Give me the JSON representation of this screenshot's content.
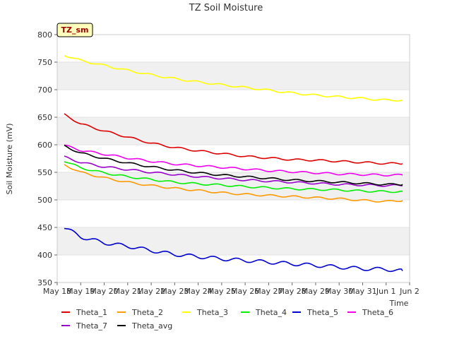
{
  "chart_data": {
    "type": "line",
    "title": "TZ Soil Moisture",
    "xlabel": "Time",
    "ylabel": "Soil Moisture (mV)",
    "ylim": [
      350,
      800
    ],
    "xlim": [
      0,
      15
    ],
    "grid": true,
    "station_label": "TZ_sm",
    "yticks": [
      350,
      400,
      450,
      500,
      550,
      600,
      650,
      700,
      750,
      800
    ],
    "xticks": [
      {
        "pos": 0,
        "label": "May 18"
      },
      {
        "pos": 1,
        "label": "May 19"
      },
      {
        "pos": 2,
        "label": "May 20"
      },
      {
        "pos": 3,
        "label": "May 21"
      },
      {
        "pos": 4,
        "label": "May 22"
      },
      {
        "pos": 5,
        "label": "May 23"
      },
      {
        "pos": 6,
        "label": "May 24"
      },
      {
        "pos": 7,
        "label": "May 25"
      },
      {
        "pos": 8,
        "label": "May 26"
      },
      {
        "pos": 9,
        "label": "May 27"
      },
      {
        "pos": 10,
        "label": "May 28"
      },
      {
        "pos": 11,
        "label": "May 29"
      },
      {
        "pos": 12,
        "label": "May 30"
      },
      {
        "pos": 13,
        "label": "May 31"
      },
      {
        "pos": 14,
        "label": "Jun 1"
      },
      {
        "pos": 15,
        "label": "Jun 2"
      }
    ],
    "x": [
      0.3,
      1.0,
      2.0,
      3.0,
      4.0,
      5.0,
      6.0,
      7.0,
      8.0,
      9.0,
      10.0,
      11.0,
      12.0,
      13.0,
      14.0,
      14.7
    ],
    "series": [
      {
        "name": "Theta_1",
        "color": "#dd0000",
        "values": [
          655,
          638,
          625,
          614,
          603,
          595,
          589,
          584,
          579,
          576,
          573,
          572,
          570,
          568,
          566,
          566
        ]
      },
      {
        "name": "Theta_2",
        "color": "#ff9900",
        "values": [
          564,
          550,
          540,
          532,
          526,
          521,
          517,
          513,
          510,
          508,
          506,
          504,
          502,
          499,
          497,
          499
        ]
      },
      {
        "name": "Theta_3",
        "color": "#ffff00",
        "values": [
          763,
          753,
          744,
          735,
          727,
          720,
          714,
          709,
          704,
          699,
          694,
          690,
          687,
          684,
          681,
          681
        ]
      },
      {
        "name": "Theta_4",
        "color": "#00ee00",
        "values": [
          571,
          558,
          549,
          542,
          537,
          532,
          529,
          527,
          524,
          522,
          520,
          519,
          518,
          516,
          515,
          515
        ]
      },
      {
        "name": "Theta_5",
        "color": "#0000cc",
        "values": [
          450,
          433,
          422,
          416,
          408,
          401,
          397,
          393,
          390,
          387,
          384,
          381,
          378,
          375,
          374,
          371
        ]
      },
      {
        "name": "Theta_6",
        "color": "#ee00ee",
        "values": [
          599,
          590,
          583,
          576,
          570,
          565,
          562,
          559,
          556,
          553,
          551,
          549,
          547,
          546,
          545,
          545
        ]
      },
      {
        "name": "Theta_7",
        "color": "#9900cc",
        "values": [
          578,
          568,
          560,
          555,
          550,
          546,
          542,
          539,
          536,
          534,
          532,
          530,
          528,
          527,
          526,
          526
        ]
      },
      {
        "name": "Theta_avg",
        "color": "#000000",
        "values": [
          598,
          585,
          575,
          567,
          560,
          554,
          549,
          545,
          542,
          539,
          536,
          534,
          532,
          530,
          528,
          528
        ]
      }
    ]
  }
}
